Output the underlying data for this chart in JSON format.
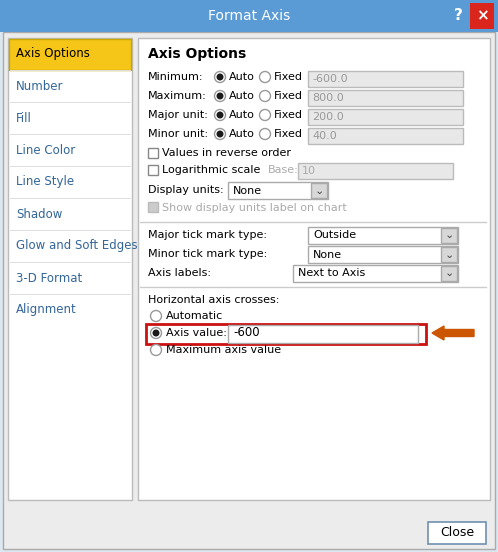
{
  "title": "Format Axis",
  "title_bar_color": "#5b9bd5",
  "close_btn_color": "#d9251c",
  "left_panel_selected_bg": "#f5c518",
  "left_panel_selected_text": "Axis Options",
  "left_panel_items": [
    "Axis Options",
    "Number",
    "Fill",
    "Line Color",
    "Line Style",
    "Shadow",
    "Glow and Soft Edges",
    "3-D Format",
    "Alignment"
  ],
  "section_title": "Axis Options",
  "rows": [
    {
      "label": "Minimum:",
      "fixed_val": "-600.0"
    },
    {
      "label": "Maximum:",
      "fixed_val": "800.0"
    },
    {
      "label": "Major unit:",
      "fixed_val": "200.0"
    },
    {
      "label": "Minor unit:",
      "fixed_val": "40.0"
    }
  ],
  "checkboxes": [
    "Values in reverse order",
    "Logarithmic scale"
  ],
  "log_base_label": "Base:",
  "log_base_val": "10",
  "display_units_label": "Display units:",
  "display_units_val": "None",
  "show_units_label": "Show display units label on chart",
  "major_tick_label": "Major tick mark type:",
  "major_tick_val": "Outside",
  "minor_tick_label": "Minor tick mark type:",
  "minor_tick_val": "None",
  "axis_labels_label": "Axis labels:",
  "axis_labels_val": "Next to Axis",
  "horiz_crosses_label": "Horizontal axis crosses:",
  "radio_automatic": "Automatic",
  "radio_axis_value": "Axis value:",
  "axis_value_input": "-600",
  "radio_max_axis": "Maximum axis value",
  "close_btn_text": "Close",
  "arrow_color": "#cc5500",
  "highlight_box_color": "#cc1111",
  "body_bg": "#dce8f0",
  "dialog_inner_bg": "#ececec",
  "panel_bg": "#ffffff",
  "input_bg": "#e8e8e8",
  "left_text_color": "#336699"
}
